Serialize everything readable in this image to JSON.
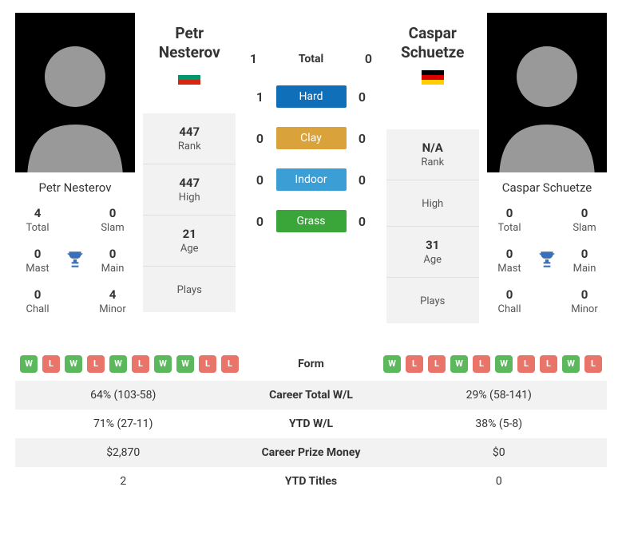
{
  "colors": {
    "win": "#5cb85c",
    "loss": "#e9746a",
    "hard": "#0f6fb8",
    "clay": "#d9a23b",
    "indoor": "#3b9fd6",
    "grass": "#3aa63a",
    "panel_bg": "#f2f2f3",
    "trophy": "#3b6fb6"
  },
  "p1": {
    "first": "Petr",
    "last": "Nesterov",
    "full": "Petr Nesterov",
    "flag": "bulgaria",
    "rank": "447",
    "high": "447",
    "age": "21",
    "plays": "",
    "titles": {
      "total": "4",
      "slam": "0",
      "mast": "0",
      "main": "0",
      "chall": "0",
      "minor": "4"
    }
  },
  "p2": {
    "first": "Caspar",
    "last": "Schuetze",
    "full": "Caspar Schuetze",
    "flag": "germany",
    "rank": "N/A",
    "high": "",
    "age": "31",
    "plays": "",
    "titles": {
      "total": "0",
      "slam": "0",
      "mast": "0",
      "main": "0",
      "chall": "0",
      "minor": "0"
    }
  },
  "h2h": {
    "total": {
      "label": "Total",
      "p1": "1",
      "p2": "0"
    },
    "surfaces": [
      {
        "label": "Hard",
        "color_key": "hard",
        "p1": "1",
        "p2": "0"
      },
      {
        "label": "Clay",
        "color_key": "clay",
        "p1": "0",
        "p2": "0"
      },
      {
        "label": "Indoor",
        "color_key": "indoor",
        "p1": "0",
        "p2": "0"
      },
      {
        "label": "Grass",
        "color_key": "grass",
        "p1": "0",
        "p2": "0"
      }
    ]
  },
  "title_labels": {
    "total": "Total",
    "slam": "Slam",
    "mast": "Mast",
    "main": "Main",
    "chall": "Chall",
    "minor": "Minor"
  },
  "stat_labels": {
    "rank": "Rank",
    "high": "High",
    "age": "Age",
    "plays": "Plays"
  },
  "form": {
    "label": "Form",
    "p1": [
      "W",
      "L",
      "W",
      "L",
      "W",
      "L",
      "W",
      "W",
      "L",
      "L"
    ],
    "p2": [
      "W",
      "L",
      "L",
      "W",
      "L",
      "W",
      "L",
      "L",
      "W",
      "L"
    ]
  },
  "table": [
    {
      "label": "Career Total W/L",
      "p1": "64% (103-58)",
      "p2": "29% (58-141)",
      "shade": true
    },
    {
      "label": "YTD W/L",
      "p1": "71% (27-11)",
      "p2": "38% (5-8)",
      "shade": false
    },
    {
      "label": "Career Prize Money",
      "p1": "$2,870",
      "p2": "$0",
      "shade": true
    },
    {
      "label": "YTD Titles",
      "p1": "2",
      "p2": "0",
      "shade": false
    }
  ]
}
